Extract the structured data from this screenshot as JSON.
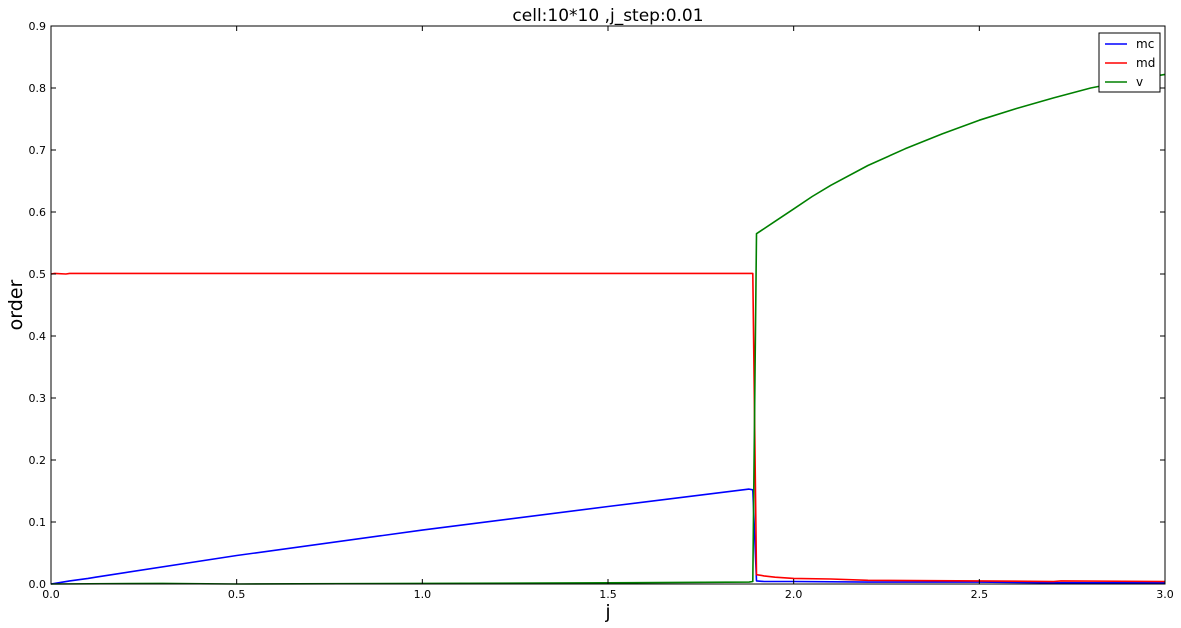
{
  "chart_data": {
    "type": "line",
    "title": "cell:10*10 ,j_step:0.01",
    "xlabel": "j",
    "ylabel": "order",
    "xlim": [
      0.0,
      3.0
    ],
    "ylim": [
      0.0,
      0.9
    ],
    "xticks": [
      "0.0",
      "0.5",
      "1.0",
      "1.5",
      "2.0",
      "2.5",
      "3.0"
    ],
    "yticks": [
      "0.0",
      "0.1",
      "0.2",
      "0.3",
      "0.4",
      "0.5",
      "0.6",
      "0.7",
      "0.8",
      "0.9"
    ],
    "grid": false,
    "legend_position": "top-right",
    "series": [
      {
        "name": "mc",
        "color": "#0000ff",
        "x": [
          0.0,
          0.01,
          0.05,
          0.1,
          0.12,
          0.5,
          1.0,
          1.5,
          1.88,
          1.89,
          1.9,
          1.92,
          2.0,
          2.2,
          2.5,
          2.7,
          3.0
        ],
        "y": [
          0.0,
          0.001,
          0.005,
          0.009,
          0.011,
          0.046,
          0.087,
          0.125,
          0.153,
          0.152,
          0.005,
          0.004,
          0.004,
          0.003,
          0.003,
          0.002,
          0.002
        ]
      },
      {
        "name": "md",
        "color": "#ff0000",
        "x": [
          0.0,
          0.01,
          0.04,
          0.05,
          0.5,
          1.0,
          1.5,
          1.88,
          1.89,
          1.9,
          1.92,
          1.95,
          2.0,
          2.1,
          2.2,
          2.5,
          2.7,
          2.72,
          3.0
        ],
        "y": [
          0.5,
          0.501,
          0.5,
          0.501,
          0.501,
          0.501,
          0.501,
          0.501,
          0.501,
          0.015,
          0.013,
          0.011,
          0.009,
          0.008,
          0.006,
          0.005,
          0.004,
          0.005,
          0.004
        ]
      },
      {
        "name": "v",
        "color": "#008000",
        "x": [
          0.0,
          0.3,
          0.5,
          1.0,
          1.5,
          1.88,
          1.89,
          1.9,
          1.95,
          2.0,
          2.05,
          2.1,
          2.2,
          2.3,
          2.4,
          2.5,
          2.6,
          2.7,
          2.8,
          2.9,
          3.0
        ],
        "y": [
          0.0,
          0.001,
          0.0,
          0.001,
          0.002,
          0.003,
          0.004,
          0.565,
          0.585,
          0.605,
          0.625,
          0.643,
          0.675,
          0.702,
          0.726,
          0.748,
          0.767,
          0.784,
          0.8,
          0.812,
          0.822
        ]
      }
    ]
  }
}
